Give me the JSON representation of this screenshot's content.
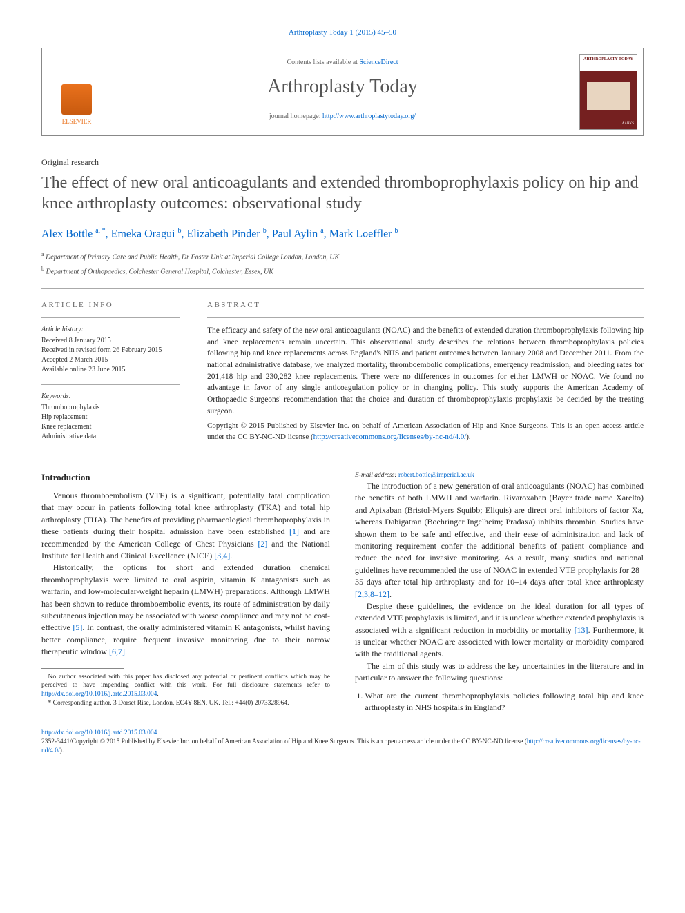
{
  "citation": "Arthroplasty Today 1 (2015) 45–50",
  "header": {
    "contents_prefix": "Contents lists available at ",
    "contents_link": "ScienceDirect",
    "journal": "Arthroplasty Today",
    "homepage_prefix": "journal homepage: ",
    "homepage_url": "http://www.arthroplastytoday.org/",
    "publisher": "ELSEVIER",
    "cover_label": "ARTHROPLASTY TODAY",
    "cover_society": "AAHKS"
  },
  "article": {
    "type": "Original research",
    "title": "The effect of new oral anticoagulants and extended thromboprophylaxis policy on hip and knee arthroplasty outcomes: observational study",
    "authors_html": "Alex Bottle <span class='sup'>a, *</span>, Emeka Oragui <span class='sup'>b</span>, Elizabeth Pinder <span class='sup'>b</span>, Paul Aylin <span class='sup'>a</span>, Mark Loeffler <span class='sup'>b</span>",
    "affiliations": [
      {
        "sup": "a",
        "text": "Department of Primary Care and Public Health, Dr Foster Unit at Imperial College London, London, UK"
      },
      {
        "sup": "b",
        "text": "Department of Orthopaedics, Colchester General Hospital, Colchester, Essex, UK"
      }
    ]
  },
  "info": {
    "label": "ARTICLE INFO",
    "history_label": "Article history:",
    "history": [
      "Received 8 January 2015",
      "Received in revised form 26 February 2015",
      "Accepted 2 March 2015",
      "Available online 23 June 2015"
    ],
    "keywords_label": "Keywords:",
    "keywords": [
      "Thromboprophylaxis",
      "Hip replacement",
      "Knee replacement",
      "Administrative data"
    ]
  },
  "abstract": {
    "label": "ABSTRACT",
    "text": "The efficacy and safety of the new oral anticoagulants (NOAC) and the benefits of extended duration thromboprophylaxis following hip and knee replacements remain uncertain. This observational study describes the relations between thromboprophylaxis policies following hip and knee replacements across England's NHS and patient outcomes between January 2008 and December 2011. From the national administrative database, we analyzed mortality, thromboembolic complications, emergency readmission, and bleeding rates for 201,418 hip and 230,282 knee replacements. There were no differences in outcomes for either LMWH or NOAC. We found no advantage in favor of any single anticoagulation policy or in changing policy. This study supports the American Academy of Orthopaedic Surgeons' recommendation that the choice and duration of thromboprophylaxis prophylaxis be decided by the treating surgeon.",
    "copyright": "Copyright © 2015 Published by Elsevier Inc. on behalf of American Association of Hip and Knee Surgeons. This is an open access article under the CC BY-NC-ND license (",
    "license_url": "http://creativecommons.org/licenses/by-nc-nd/4.0/",
    "copyright_close": ")."
  },
  "body": {
    "intro_heading": "Introduction",
    "p1": "Venous thromboembolism (VTE) is a significant, potentially fatal complication that may occur in patients following total knee arthroplasty (TKA) and total hip arthroplasty (THA). The benefits of providing pharmacological thromboprophylaxis in these patients during their hospital admission have been established ",
    "p1_ref1": "[1]",
    "p1_mid": " and are recommended by the American College of Chest Physicians ",
    "p1_ref2": "[2]",
    "p1_mid2": " and the National Institute for Health and Clinical Excellence (NICE) ",
    "p1_ref3": "[3,4]",
    "p1_end": ".",
    "p2a": "Historically, the options for short and extended duration chemical thromboprophylaxis were limited to oral aspirin, vitamin K antagonists such as warfarin, and low-molecular-weight heparin (LMWH) preparations. Although LMWH has been shown to reduce thromboembolic events, its route of administration by daily subcutaneous injection may be associated with worse compliance and may not be cost-effective ",
    "p2_ref5": "[5]",
    "p2b": ". In contrast, the orally administered vitamin K antagonists, whilst having better compliance, require frequent invasive monitoring due to their narrow therapeutic window ",
    "p2_ref67": "[6,7]",
    "p2c": ".",
    "p3a": "The introduction of a new generation of oral anticoagulants (NOAC) has combined the benefits of both LMWH and warfarin. Rivaroxaban (Bayer trade name Xarelto) and Apixaban (Bristol-Myers Squibb; Eliquis) are direct oral inhibitors of factor Xa, whereas Dabigatran (Boehringer Ingelheim; Pradaxa) inhibits thrombin. Studies have shown them to be safe and effective, and their ease of administration and lack of monitoring requirement confer the additional benefits of patient compliance and reduce the need for invasive monitoring. As a result, many studies and national guidelines have recommended the use of NOAC in extended VTE prophylaxis for 28–35 days after total hip arthroplasty and for 10–14 days after total knee arthroplasty ",
    "p3_ref": "[2,3,8–12]",
    "p3b": ".",
    "p4a": "Despite these guidelines, the evidence on the ideal duration for all types of extended VTE prophylaxis is limited, and it is unclear whether extended prophylaxis is associated with a significant reduction in morbidity or mortality ",
    "p4_ref": "[13]",
    "p4b": ". Furthermore, it is unclear whether NOAC are associated with lower mortality or morbidity compared with the traditional agents.",
    "p5": "The aim of this study was to address the key uncertainties in the literature and in particular to answer the following questions:",
    "q1": "What are the current thromboprophylaxis policies following total hip and knee arthroplasty in NHS hospitals in England?"
  },
  "footnotes": {
    "disclosure": "No author associated with this paper has disclosed any potential or pertinent conflicts which may be perceived to have impending conflict with this work. For full disclosure statements refer to ",
    "disclosure_url": "http://dx.doi.org/10.1016/j.artd.2015.03.004",
    "disclosure_end": ".",
    "corresp_label": "* Corresponding author. ",
    "corresp_text": "3 Dorset Rise, London, EC4Y 8EN, UK. Tel.: +44(0) 2073328964.",
    "email_label": "E-mail address: ",
    "email": "robert.bottle@imperial.ac.uk"
  },
  "bottom": {
    "doi": "http://dx.doi.org/10.1016/j.artd.2015.03.004",
    "issn_line": "2352-3441/Copyright © 2015 Published by Elsevier Inc. on behalf of American Association of Hip and Knee Surgeons. This is an open access article under the CC BY-NC-ND license (",
    "license_url": "http://creativecommons.org/licenses/by-nc-nd/4.0/",
    "issn_close": ")."
  },
  "colors": {
    "link": "#0066cc",
    "elsevier": "#e9711c",
    "cover": "#752020",
    "text": "#2a2a2a"
  }
}
